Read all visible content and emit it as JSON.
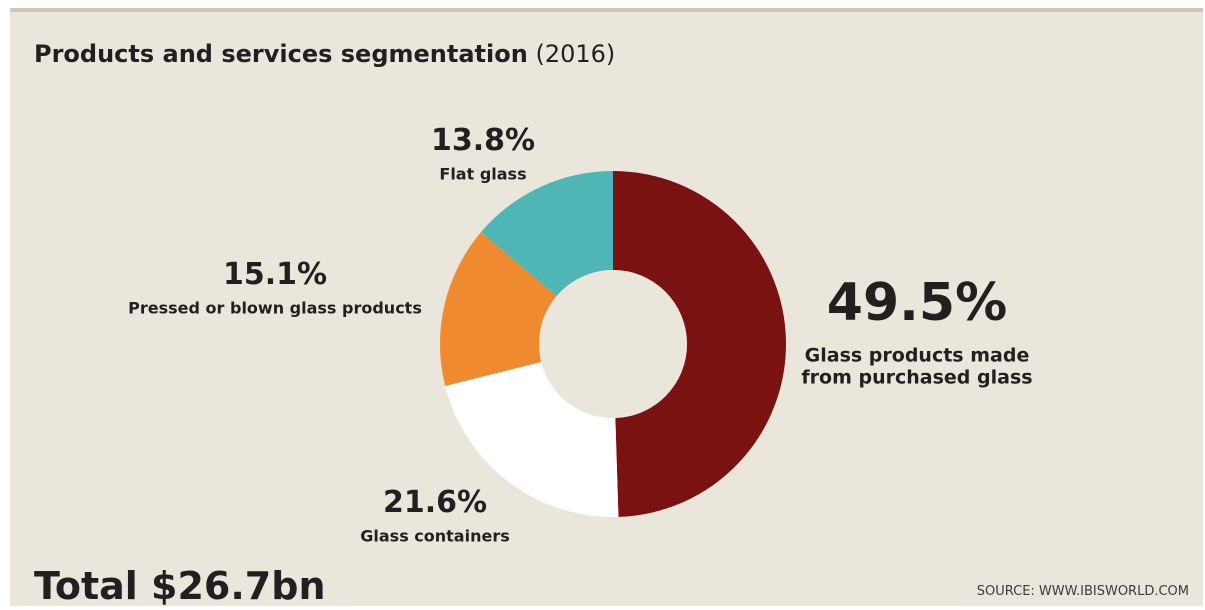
{
  "title": {
    "main": "Products and services segmentation",
    "year": "(2016)"
  },
  "total": "Total $26.7bn",
  "source": "SOURCE: WWW.IBISWORLD.COM",
  "chart_data": {
    "type": "pie",
    "donut": true,
    "title": "Products and services segmentation (2016)",
    "total_label": "Total $26.7bn",
    "slices": [
      {
        "label_lines": [
          "Glass products made",
          "from purchased glass"
        ],
        "value": 49.5,
        "display": "49.5%",
        "color": "#7a1212"
      },
      {
        "label_lines": [
          "Glass containers"
        ],
        "value": 21.6,
        "display": "21.6%",
        "color": "#ffffff"
      },
      {
        "label_lines": [
          "Pressed or blown glass products"
        ],
        "value": 15.1,
        "display": "15.1%",
        "color": "#f08a30"
      },
      {
        "label_lines": [
          "Flat glass"
        ],
        "value": 13.8,
        "display": "13.8%",
        "color": "#4fb5b5"
      }
    ]
  }
}
